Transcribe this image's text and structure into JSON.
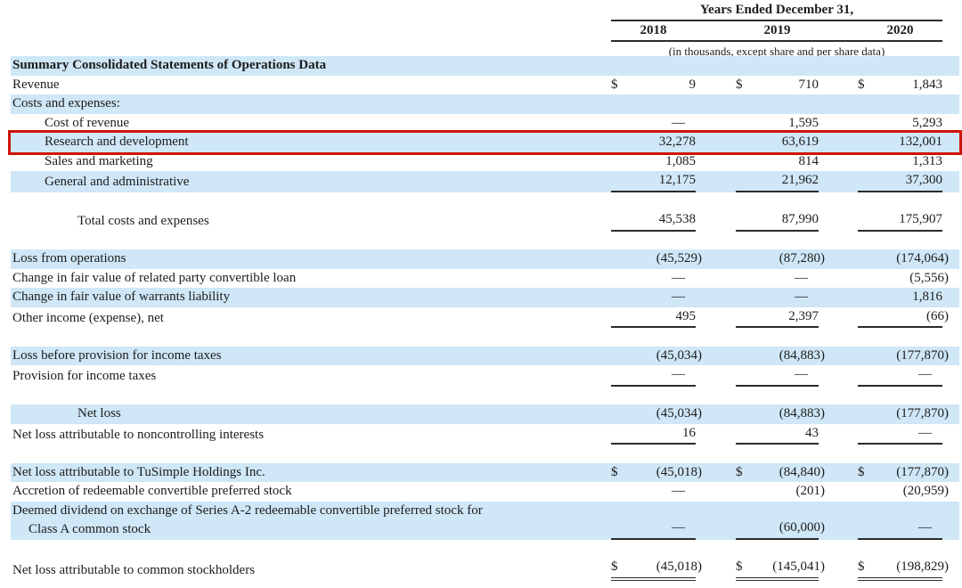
{
  "header": {
    "years_ended_label": "Years Ended December 31,",
    "years": [
      "2018",
      "2019",
      "2020"
    ],
    "units_note": "(in thousands, except share and per share data)"
  },
  "colors": {
    "row_stripe": "#cfe7f7",
    "highlight_box": "#cf130c",
    "rule": "#2b2b2b",
    "text": "#1c1c1c"
  },
  "table": {
    "rows": [
      {
        "type": "row",
        "label": "Summary Consolidated Statements of Operations Data",
        "bold": true,
        "stripe": true,
        "indent": 0,
        "dollar": false,
        "values": null,
        "underline": "none",
        "highlight": false
      },
      {
        "type": "row",
        "label": "Revenue",
        "bold": false,
        "stripe": false,
        "indent": 0,
        "dollar": true,
        "values": [
          "9",
          "710",
          "1,843"
        ],
        "underline": "none",
        "highlight": false
      },
      {
        "type": "row",
        "label": "Costs and expenses:",
        "bold": false,
        "stripe": true,
        "indent": 0,
        "dollar": false,
        "values": null,
        "underline": "none",
        "highlight": false
      },
      {
        "type": "row",
        "label": "Cost of revenue",
        "bold": false,
        "stripe": false,
        "indent": 1,
        "dollar": false,
        "values": [
          "—",
          "1,595",
          "5,293"
        ],
        "underline": "none",
        "highlight": false
      },
      {
        "type": "row",
        "label": "Research and development",
        "bold": false,
        "stripe": true,
        "indent": 1,
        "dollar": false,
        "values": [
          "32,278",
          "63,619",
          "132,001"
        ],
        "underline": "none",
        "highlight": true
      },
      {
        "type": "row",
        "label": "Sales and marketing",
        "bold": false,
        "stripe": false,
        "indent": 1,
        "dollar": false,
        "values": [
          "1,085",
          "814",
          "1,313"
        ],
        "underline": "none",
        "highlight": false
      },
      {
        "type": "row",
        "label": "General and administrative",
        "bold": false,
        "stripe": true,
        "indent": 1,
        "dollar": false,
        "values": [
          "12,175",
          "21,962",
          "37,300"
        ],
        "underline": "single",
        "highlight": false
      },
      {
        "type": "spacer"
      },
      {
        "type": "row",
        "label": "Total costs and expenses",
        "bold": false,
        "stripe": false,
        "indent": 2,
        "dollar": false,
        "values": [
          "45,538",
          "87,990",
          "175,907"
        ],
        "underline": "single",
        "highlight": false
      },
      {
        "type": "spacer"
      },
      {
        "type": "row",
        "label": "Loss from operations",
        "bold": false,
        "stripe": true,
        "indent": 0,
        "dollar": false,
        "values": [
          "(45,529)",
          "(87,280)",
          "(174,064)"
        ],
        "underline": "none",
        "highlight": false
      },
      {
        "type": "row",
        "label": "Change in fair value of related party convertible loan",
        "bold": false,
        "stripe": false,
        "indent": 0,
        "dollar": false,
        "values": [
          "—",
          "—",
          "(5,556)"
        ],
        "underline": "none",
        "highlight": false
      },
      {
        "type": "row",
        "label": "Change in fair value of warrants liability",
        "bold": false,
        "stripe": true,
        "indent": 0,
        "dollar": false,
        "values": [
          "—",
          "—",
          "1,816"
        ],
        "underline": "none",
        "highlight": false
      },
      {
        "type": "row",
        "label": "Other income (expense), net",
        "bold": false,
        "stripe": false,
        "indent": 0,
        "dollar": false,
        "values": [
          "495",
          "2,397",
          "(66)"
        ],
        "underline": "single",
        "highlight": false
      },
      {
        "type": "spacer"
      },
      {
        "type": "row",
        "label": "Loss before provision for income taxes",
        "bold": false,
        "stripe": true,
        "indent": 0,
        "dollar": false,
        "values": [
          "(45,034)",
          "(84,883)",
          "(177,870)"
        ],
        "underline": "none",
        "highlight": false
      },
      {
        "type": "row",
        "label": "Provision for income taxes",
        "bold": false,
        "stripe": false,
        "indent": 0,
        "dollar": false,
        "values": [
          "—",
          "—",
          "—"
        ],
        "underline": "single",
        "highlight": false
      },
      {
        "type": "spacer"
      },
      {
        "type": "row",
        "label": "Net loss",
        "bold": false,
        "stripe": true,
        "indent": 2,
        "dollar": false,
        "values": [
          "(45,034)",
          "(84,883)",
          "(177,870)"
        ],
        "underline": "none",
        "highlight": false
      },
      {
        "type": "row",
        "label": "Net loss attributable to noncontrolling interests",
        "bold": false,
        "stripe": false,
        "indent": 0,
        "dollar": false,
        "values": [
          "16",
          "43",
          "—"
        ],
        "underline": "single",
        "highlight": false
      },
      {
        "type": "spacer"
      },
      {
        "type": "row",
        "label": "Net loss attributable to TuSimple Holdings Inc.",
        "bold": false,
        "stripe": true,
        "indent": 0,
        "dollar": true,
        "values": [
          "(45,018)",
          "(84,840)",
          "(177,870)"
        ],
        "underline": "none",
        "highlight": false
      },
      {
        "type": "row",
        "label": "Accretion of redeemable convertible preferred stock",
        "bold": false,
        "stripe": false,
        "indent": 0,
        "dollar": false,
        "values": [
          "—",
          "(201)",
          "(20,959)"
        ],
        "underline": "none",
        "highlight": false
      },
      {
        "type": "row",
        "label": "Deemed dividend on exchange of Series A-2 redeemable convertible preferred stock for",
        "label2": "Class A common stock",
        "bold": false,
        "stripe": true,
        "indent": 0,
        "dollar": false,
        "values": [
          "—",
          "(60,000)",
          "—"
        ],
        "underline": "single",
        "highlight": false
      },
      {
        "type": "spacer"
      },
      {
        "type": "row",
        "label": "Net loss attributable to common stockholders",
        "bold": false,
        "stripe": false,
        "indent": 0,
        "dollar": true,
        "values": [
          "(45,018)",
          "(145,041)",
          "(198,829)"
        ],
        "underline": "double",
        "highlight": false
      }
    ]
  }
}
